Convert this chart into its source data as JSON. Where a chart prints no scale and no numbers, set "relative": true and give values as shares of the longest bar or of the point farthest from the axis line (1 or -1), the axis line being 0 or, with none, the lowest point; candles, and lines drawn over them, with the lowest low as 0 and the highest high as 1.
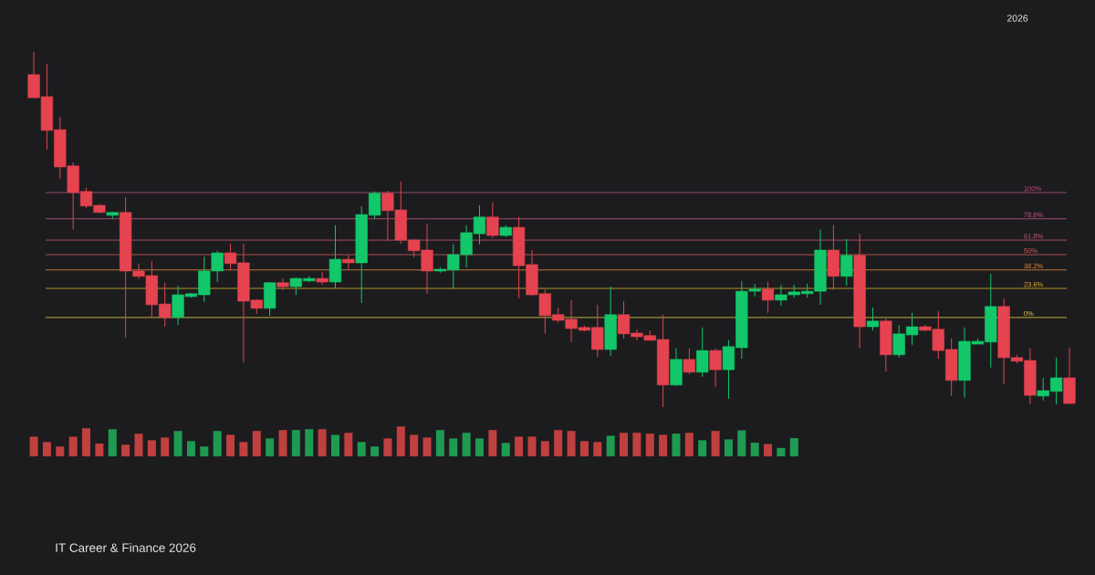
{
  "chart_data": [
    {
      "type": "candlestick",
      "relative": true,
      "categories": [
        null,
        null,
        null,
        null,
        null,
        null,
        null,
        null,
        null,
        null,
        null,
        null,
        null,
        null,
        null,
        null,
        null,
        null,
        null,
        null,
        null,
        null,
        null,
        null,
        null,
        null,
        null,
        null,
        null,
        null,
        null,
        null,
        null,
        null,
        null,
        null,
        null,
        null,
        null,
        null,
        null,
        null,
        null,
        null,
        null,
        null,
        null,
        null,
        null,
        null,
        null,
        null,
        null,
        null,
        null,
        null,
        null,
        null,
        null,
        null,
        null,
        null,
        null,
        null,
        null,
        null,
        null,
        null,
        null,
        null,
        null,
        null,
        null,
        null,
        null,
        null,
        null,
        null,
        null,
        null
      ],
      "ohlc": [
        [
          0.936,
          1,
          0.869,
          0.871
        ],
        [
          0.874,
          0.967,
          0.725,
          0.779
        ],
        [
          0.781,
          0.817,
          0.643,
          0.676
        ],
        [
          0.679,
          0.689,
          0.499,
          0.604
        ],
        [
          0.607,
          0.617,
          0.56,
          0.566
        ],
        [
          0.568,
          0.571,
          0.545,
          0.548
        ],
        [
          0.54,
          0.55,
          0.53,
          0.548
        ],
        [
          0.548,
          0.591,
          0.195,
          0.383
        ],
        [
          0.383,
          0.404,
          0.36,
          0.368
        ],
        [
          0.37,
          0.411,
          0.254,
          0.288
        ],
        [
          0.29,
          0.35,
          0.226,
          0.252
        ],
        [
          0.252,
          0.342,
          0.231,
          0.316
        ],
        [
          0.311,
          0.321,
          0.308,
          0.319
        ],
        [
          0.316,
          0.424,
          0.296,
          0.383
        ],
        [
          0.383,
          0.44,
          0.352,
          0.434
        ],
        [
          0.434,
          0.46,
          0.386,
          0.404
        ],
        [
          0.406,
          0.46,
          0.126,
          0.298
        ],
        [
          0.301,
          0.303,
          0.262,
          0.278
        ],
        [
          0.278,
          0.352,
          0.257,
          0.35
        ],
        [
          0.35,
          0.362,
          0.329,
          0.339
        ],
        [
          0.339,
          0.365,
          0.316,
          0.362
        ],
        [
          0.355,
          0.368,
          0.352,
          0.362
        ],
        [
          0.362,
          0.38,
          0.344,
          0.352
        ],
        [
          0.352,
          0.512,
          0.334,
          0.416
        ],
        [
          0.416,
          0.427,
          0.386,
          0.406
        ],
        [
          0.406,
          0.566,
          0.293,
          0.542
        ],
        [
          0.54,
          0.607,
          0.53,
          0.602
        ],
        [
          0.602,
          0.609,
          0.468,
          0.553
        ],
        [
          0.555,
          0.635,
          0.46,
          0.47
        ],
        [
          0.47,
          0.473,
          0.422,
          0.44
        ],
        [
          0.442,
          0.517,
          0.319,
          0.383
        ],
        [
          0.383,
          0.393,
          0.378,
          0.388
        ],
        [
          0.386,
          0.458,
          0.334,
          0.429
        ],
        [
          0.429,
          0.512,
          0.393,
          0.491
        ],
        [
          0.488,
          0.568,
          0.458,
          0.535
        ],
        [
          0.535,
          0.576,
          0.476,
          0.483
        ],
        [
          0.483,
          0.512,
          0.478,
          0.506
        ],
        [
          0.506,
          0.535,
          0.306,
          0.398
        ],
        [
          0.401,
          0.442,
          0.314,
          0.316
        ],
        [
          0.319,
          0.332,
          0.206,
          0.257
        ],
        [
          0.26,
          0.28,
          0.237,
          0.244
        ],
        [
          0.247,
          0.301,
          0.183,
          0.221
        ],
        [
          0.224,
          0.229,
          0.213,
          0.216
        ],
        [
          0.224,
          0.288,
          0.141,
          0.162
        ],
        [
          0.162,
          0.339,
          0.144,
          0.26
        ],
        [
          0.26,
          0.298,
          0.193,
          0.206
        ],
        [
          0.208,
          0.219,
          0.188,
          0.198
        ],
        [
          0.201,
          0.216,
          0.188,
          0.188
        ],
        [
          0.19,
          0.26,
          0,
          0.062
        ],
        [
          0.062,
          0.165,
          0.059,
          0.134
        ],
        [
          0.134,
          0.165,
          0.093,
          0.098
        ],
        [
          0.098,
          0.224,
          0.085,
          0.159
        ],
        [
          0.159,
          0.165,
          0.057,
          0.105
        ],
        [
          0.105,
          0.188,
          0.023,
          0.17
        ],
        [
          0.167,
          0.355,
          0.136,
          0.326
        ],
        [
          0.326,
          0.347,
          0.311,
          0.332
        ],
        [
          0.332,
          0.352,
          0.265,
          0.301
        ],
        [
          0.301,
          0.344,
          0.285,
          0.316
        ],
        [
          0.316,
          0.344,
          0.308,
          0.324
        ],
        [
          0.319,
          0.347,
          0.308,
          0.326
        ],
        [
          0.326,
          0.499,
          0.288,
          0.442
        ],
        [
          0.442,
          0.512,
          0.329,
          0.368
        ],
        [
          0.368,
          0.473,
          0.342,
          0.427
        ],
        [
          0.427,
          0.488,
          0.165,
          0.226
        ],
        [
          0.226,
          0.28,
          0.216,
          0.242
        ],
        [
          0.242,
          0.249,
          0.1,
          0.147
        ],
        [
          0.147,
          0.231,
          0.139,
          0.206
        ],
        [
          0.203,
          0.265,
          0.175,
          0.226
        ],
        [
          0.226,
          0.231,
          0.213,
          0.216
        ],
        [
          0.219,
          0.27,
          0.136,
          0.159
        ],
        [
          0.162,
          0.193,
          0.031,
          0.075
        ],
        [
          0.075,
          0.224,
          0.026,
          0.185
        ],
        [
          0.177,
          0.193,
          0.177,
          0.185
        ],
        [
          0.183,
          0.375,
          0.111,
          0.283
        ],
        [
          0.283,
          0.306,
          0.064,
          0.139
        ],
        [
          0.139,
          0.147,
          0.123,
          0.129
        ],
        [
          0.131,
          0.165,
          0.008,
          0.033
        ],
        [
          0.031,
          0.082,
          0.018,
          0.046
        ],
        [
          0.044,
          0.139,
          0.008,
          0.082
        ],
        [
          0.082,
          0.167,
          0.008,
          0.01
        ]
      ],
      "colors": [
        "#e5434f",
        "#e5434f",
        "#e5434f",
        "#e5434f",
        "#e5434f",
        "#e5434f",
        "#12c86a",
        "#e5434f",
        "#e5434f",
        "#e5434f",
        "#e5434f",
        "#12c86a",
        "#12c86a",
        "#12c86a",
        "#12c86a",
        "#e5434f",
        "#e5434f",
        "#e5434f",
        "#12c86a",
        "#e5434f",
        "#12c86a",
        "#12c86a",
        "#e5434f",
        "#12c86a",
        "#e5434f",
        "#12c86a",
        "#12c86a",
        "#e5434f",
        "#e5434f",
        "#e5434f",
        "#e5434f",
        "#12c86a",
        "#12c86a",
        "#12c86a",
        "#12c86a",
        "#e5434f",
        "#12c86a",
        "#e5434f",
        "#e5434f",
        "#e5434f",
        "#e5434f",
        "#e5434f",
        "#e5434f",
        "#e5434f",
        "#12c86a",
        "#e5434f",
        "#e5434f",
        "#e5434f",
        "#e5434f",
        "#12c86a",
        "#e5434f",
        "#12c86a",
        "#e5434f",
        "#12c86a",
        "#12c86a",
        "#12c86a",
        "#e5434f",
        "#12c86a",
        "#12c86a",
        "#12c86a",
        "#12c86a",
        "#e5434f",
        "#12c86a",
        "#e5434f",
        "#12c86a",
        "#e5434f",
        "#12c86a",
        "#12c86a",
        "#e5434f",
        "#e5434f",
        "#e5434f",
        "#12c86a",
        "#12c86a",
        "#12c86a",
        "#e5434f",
        "#e5434f",
        "#e5434f",
        "#12c86a",
        "#12c86a",
        "#e5434f"
      ],
      "ref_lines": [
        {
          "axis": "y",
          "value": 0.604,
          "color": "#b8508a"
        },
        {
          "axis": "y",
          "value": 0.53,
          "color": "#c2588a"
        },
        {
          "axis": "y",
          "value": 0.47,
          "color": "#c85a78"
        },
        {
          "axis": "y",
          "value": 0.429,
          "color": "#d05e5e"
        },
        {
          "axis": "y",
          "value": 0.386,
          "color": "#e08a40"
        },
        {
          "axis": "y",
          "value": 0.334,
          "color": "#e0b030"
        },
        {
          "axis": "y",
          "value": 0.252,
          "color": "#e6d040"
        }
      ],
      "annotations": [
        "2026",
        "IT Career & Finance 2026",
        {
          "text": "100%",
          "y": 0.604
        },
        {
          "text": "78.6%",
          "y": 0.53
        },
        {
          "text": "61.8%",
          "y": 0.47
        },
        {
          "text": "50%",
          "y": 0.429
        },
        {
          "text": "38.2%",
          "y": 0.386
        },
        {
          "text": "23.6%",
          "y": 0.334
        },
        {
          "text": "0%",
          "y": 0.252
        }
      ]
    },
    {
      "type": "bar",
      "relative": true,
      "categories": [
        null,
        null,
        null,
        null,
        null,
        null,
        null,
        null,
        null,
        null,
        null,
        null,
        null,
        null,
        null,
        null,
        null,
        null,
        null,
        null,
        null,
        null,
        null,
        null,
        null,
        null,
        null,
        null,
        null,
        null,
        null,
        null,
        null,
        null,
        null,
        null,
        null,
        null,
        null,
        null,
        null,
        null,
        null,
        null,
        null,
        null,
        null,
        null,
        null,
        null,
        null,
        null,
        null,
        null,
        null,
        null,
        null,
        null,
        null
      ],
      "values": [
        0.66,
        0.48,
        0.33,
        0.66,
        0.94,
        0.43,
        0.91,
        0.39,
        0.76,
        0.54,
        0.63,
        0.85,
        0.51,
        0.33,
        0.85,
        0.72,
        0.48,
        0.85,
        0.6,
        0.88,
        0.88,
        0.91,
        0.91,
        0.72,
        0.79,
        0.48,
        0.33,
        0.6,
        1,
        0.72,
        0.63,
        0.88,
        0.6,
        0.79,
        0.6,
        0.88,
        0.45,
        0.66,
        0.66,
        0.51,
        0.88,
        0.85,
        0.51,
        0.48,
        0.69,
        0.79,
        0.79,
        0.76,
        0.72,
        0.76,
        0.79,
        0.54,
        0.85,
        0.57,
        0.87,
        0.46,
        0.41,
        0.28,
        0.61
      ],
      "colors": [
        "#c0403f",
        "#c0403f",
        "#c0403f",
        "#c0403f",
        "#c0403f",
        "#c0403f",
        "#1f9a52",
        "#c0403f",
        "#c0403f",
        "#c0403f",
        "#c0403f",
        "#1f9a52",
        "#1f9a52",
        "#1f9a52",
        "#1f9a52",
        "#c0403f",
        "#c0403f",
        "#c0403f",
        "#1f9a52",
        "#c0403f",
        "#1f9a52",
        "#1f9a52",
        "#c0403f",
        "#1f9a52",
        "#c0403f",
        "#1f9a52",
        "#1f9a52",
        "#c0403f",
        "#c0403f",
        "#c0403f",
        "#c0403f",
        "#1f9a52",
        "#1f9a52",
        "#1f9a52",
        "#1f9a52",
        "#c0403f",
        "#1f9a52",
        "#c0403f",
        "#c0403f",
        "#c0403f",
        "#c0403f",
        "#c0403f",
        "#c0403f",
        "#c0403f",
        "#1f9a52",
        "#c0403f",
        "#c0403f",
        "#c0403f",
        "#c0403f",
        "#1f9a52",
        "#c0403f",
        "#1f9a52",
        "#c0403f",
        "#1f9a52",
        "#1f9a52",
        "#1f9a52",
        "#c0403f",
        "#1f9a52",
        "#1f9a52"
      ]
    }
  ]
}
